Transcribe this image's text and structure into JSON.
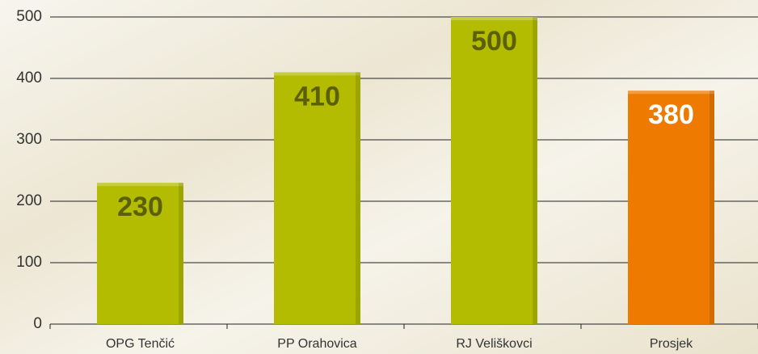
{
  "chart_data": {
    "type": "bar",
    "categories": [
      "OPG Tenčić",
      "PP Orahovica",
      "RJ Veliškovci",
      "Prosjek"
    ],
    "values": [
      230,
      410,
      500,
      380
    ],
    "colors": [
      "#b3bc00",
      "#b3bc00",
      "#b3bc00",
      "#ee7b00"
    ],
    "ylim": [
      0,
      500
    ],
    "yticks": [
      0,
      100,
      200,
      300,
      400,
      500
    ],
    "grid": true
  }
}
